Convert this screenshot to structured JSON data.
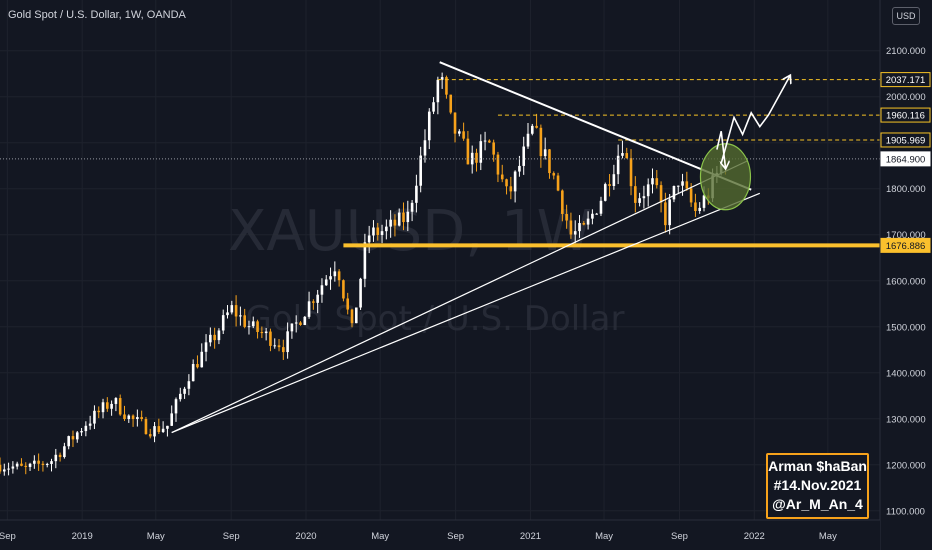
{
  "header": {
    "title": "Gold Spot / U.S. Dollar, 1W, OANDA",
    "currency_button": "USD"
  },
  "watermark": {
    "symbol": "XAUUSD, 1W",
    "description": "Gold Spot / U.S. Dollar"
  },
  "signature": {
    "lines": [
      "Arman $haВan",
      "#14.Nov.2021",
      "@Ar_M_An_4"
    ],
    "border_color": "#f7a21b"
  },
  "colors": {
    "background": "#131722",
    "up_candle": "#ffffff",
    "down_candle": "#f7a21b",
    "support_line": "#fbc02d",
    "resistance_dashed": "#f7c325",
    "highlight_ellipse": "#556b2f"
  },
  "chart_data": {
    "type": "candlestick",
    "symbol": "XAUUSD",
    "timeframe": "1W",
    "y_axis": {
      "ticks": [
        1100,
        1200,
        1300,
        1400,
        1500,
        1600,
        1700,
        1800,
        1900,
        2000,
        2100
      ],
      "tick_labels": [
        "1100.000",
        "1200.000",
        "1300.000",
        "1400.000",
        "1500.000",
        "1600.000",
        "1700.000",
        "1800.000",
        "1900.000",
        "2000.000",
        "2100.000"
      ],
      "range": [
        1080,
        2145
      ]
    },
    "x_axis": {
      "labels": [
        "Sep",
        "2019",
        "May",
        "Sep",
        "2020",
        "May",
        "Sep",
        "2021",
        "May",
        "Sep",
        "2022",
        "May"
      ],
      "dates": [
        "2018-09-01",
        "2019-01-01",
        "2019-05-01",
        "2019-09-01",
        "2020-01-01",
        "2020-05-01",
        "2020-09-01",
        "2021-01-01",
        "2021-05-01",
        "2021-09-01",
        "2022-01-01",
        "2022-05-01"
      ],
      "range": [
        "2018-08-20",
        "2022-07-25"
      ]
    },
    "price_labels": [
      {
        "value": 2037.171,
        "text": "2037.171",
        "style": "level"
      },
      {
        "value": 1960.116,
        "text": "1960.116",
        "style": "level"
      },
      {
        "value": 1905.969,
        "text": "1905.969",
        "style": "level"
      },
      {
        "value": 1864.9,
        "text": "1864.900",
        "style": "current"
      },
      {
        "value": 1676.886,
        "text": "1676.886",
        "style": "support"
      }
    ],
    "ohlc_anchors": [
      {
        "date": "2018-08-20",
        "close": 1200
      },
      {
        "date": "2018-10-01",
        "close": 1190
      },
      {
        "date": "2018-11-12",
        "close": 1210
      },
      {
        "date": "2019-01-07",
        "close": 1290
      },
      {
        "date": "2019-02-20",
        "close": 1340
      },
      {
        "date": "2019-03-20",
        "close": 1300
      },
      {
        "date": "2019-04-25",
        "close": 1275
      },
      {
        "date": "2019-05-20",
        "close": 1285
      },
      {
        "date": "2019-06-25",
        "close": 1400
      },
      {
        "date": "2019-08-05",
        "close": 1480
      },
      {
        "date": "2019-09-01",
        "close": 1540
      },
      {
        "date": "2019-10-01",
        "close": 1500
      },
      {
        "date": "2019-11-25",
        "close": 1460
      },
      {
        "date": "2020-01-10",
        "close": 1560
      },
      {
        "date": "2020-02-20",
        "close": 1640
      },
      {
        "date": "2020-03-16",
        "close": 1490
      },
      {
        "date": "2020-04-10",
        "close": 1700
      },
      {
        "date": "2020-05-10",
        "close": 1710
      },
      {
        "date": "2020-06-15",
        "close": 1740
      },
      {
        "date": "2020-07-20",
        "close": 1950
      },
      {
        "date": "2020-08-06",
        "close": 2050
      },
      {
        "date": "2020-08-25",
        "close": 1940
      },
      {
        "date": "2020-09-25",
        "close": 1860
      },
      {
        "date": "2020-10-25",
        "close": 1900
      },
      {
        "date": "2020-11-25",
        "close": 1780
      },
      {
        "date": "2021-01-05",
        "close": 1930
      },
      {
        "date": "2021-02-10",
        "close": 1820
      },
      {
        "date": "2021-03-08",
        "close": 1700
      },
      {
        "date": "2021-03-30",
        "close": 1710
      },
      {
        "date": "2021-04-26",
        "close": 1780
      },
      {
        "date": "2021-05-31",
        "close": 1900
      },
      {
        "date": "2021-06-21",
        "close": 1780
      },
      {
        "date": "2021-07-20",
        "close": 1810
      },
      {
        "date": "2021-08-09",
        "close": 1735
      },
      {
        "date": "2021-08-30",
        "close": 1820
      },
      {
        "date": "2021-09-27",
        "close": 1750
      },
      {
        "date": "2021-10-18",
        "close": 1790
      },
      {
        "date": "2021-11-08",
        "close": 1850
      },
      {
        "date": "2021-11-15",
        "close": 1864.9
      }
    ],
    "drawings": {
      "support_levels": [
        1676.886
      ],
      "resistance_levels": [
        1905.969,
        1960.116,
        2037.171
      ],
      "descending_trendline": [
        {
          "date": "2020-08-06",
          "value": 2075
        },
        {
          "date": "2021-12-27",
          "value": 1798
        }
      ],
      "ascending_trendlines": [
        [
          {
            "date": "2019-05-27",
            "value": 1270
          },
          {
            "date": "2021-12-20",
            "value": 1860
          }
        ],
        [
          {
            "date": "2019-05-27",
            "value": 1270
          },
          {
            "date": "2022-01-10",
            "value": 1790
          }
        ]
      ],
      "highlight": {
        "date": "2021-11-15",
        "value": 1826
      },
      "projected_path": [
        {
          "date": "2021-11-08",
          "value": 1855
        },
        {
          "date": "2021-11-29",
          "value": 1955
        },
        {
          "date": "2021-12-13",
          "value": 1918
        },
        {
          "date": "2021-12-27",
          "value": 1965
        },
        {
          "date": "2022-01-10",
          "value": 1935
        },
        {
          "date": "2022-01-24",
          "value": 1960
        },
        {
          "date": "2022-02-28",
          "value": 2045
        }
      ],
      "projected_path_hook": [
        {
          "date": "2021-11-01",
          "value": 1885
        },
        {
          "date": "2021-11-08",
          "value": 1925
        },
        {
          "date": "2021-11-15",
          "value": 1845
        }
      ]
    }
  }
}
